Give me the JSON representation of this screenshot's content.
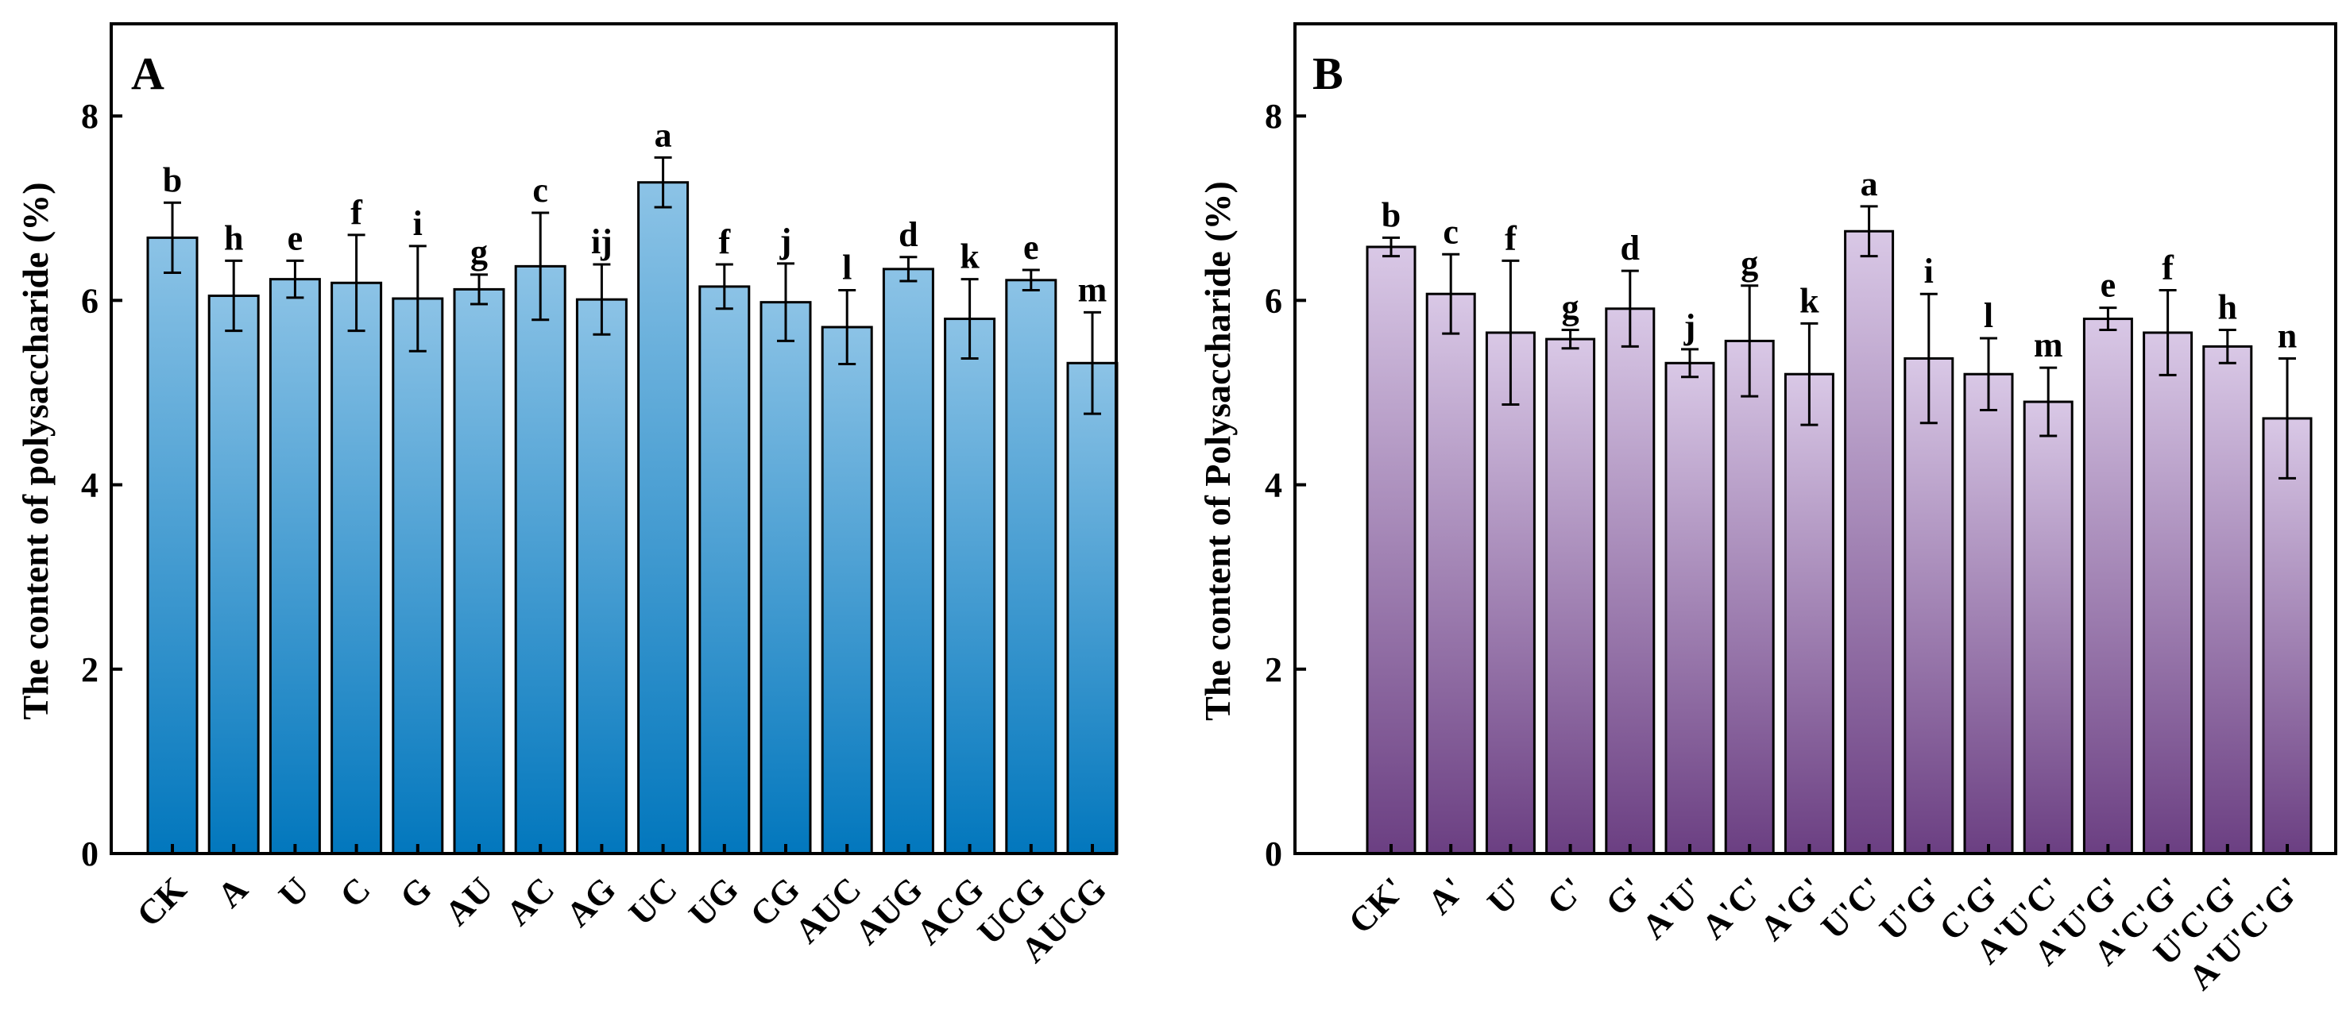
{
  "chart_data": [
    {
      "type": "bar",
      "panel_label": "A",
      "title": "",
      "xlabel": "",
      "ylabel": "The content of polysaccharide (%)",
      "ylim": [
        0,
        9
      ],
      "yticks": [
        0,
        2,
        4,
        6,
        8
      ],
      "categories": [
        "CK",
        "A",
        "U",
        "C",
        "G",
        "AU",
        "AC",
        "AG",
        "UC",
        "UG",
        "CG",
        "AUC",
        "AUG",
        "ACG",
        "UCG",
        "AUCG"
      ],
      "values": [
        6.68,
        6.05,
        6.23,
        6.19,
        6.02,
        6.12,
        6.37,
        6.01,
        7.28,
        6.15,
        5.98,
        5.71,
        6.34,
        5.8,
        6.22,
        5.32
      ],
      "errors": [
        0.38,
        0.38,
        0.2,
        0.52,
        0.57,
        0.16,
        0.58,
        0.38,
        0.27,
        0.24,
        0.42,
        0.4,
        0.13,
        0.43,
        0.11,
        0.55
      ],
      "significance": [
        "b",
        "h",
        "e",
        "f",
        "i",
        "g",
        "c",
        "ij",
        "a",
        "f",
        "j",
        "l",
        "d",
        "k",
        "e",
        "m"
      ],
      "colors": {
        "top": "#8cc3e6",
        "bottom": "#0277bd"
      }
    },
    {
      "type": "bar",
      "panel_label": "B",
      "title": "",
      "xlabel": "",
      "ylabel": "The content of Polysaccharide (%)",
      "ylim": [
        0,
        9
      ],
      "yticks": [
        0,
        2,
        4,
        6,
        8
      ],
      "categories": [
        "CK'",
        "A'",
        "U'",
        "C'",
        "G'",
        "A'U'",
        "A'C'",
        "A'G'",
        "U'C'",
        "U'G'",
        "C'G'",
        "A'U'C'",
        "A'U'G'",
        "A'C'G'",
        "U'C'G'",
        "A'U'C'G'"
      ],
      "values": [
        6.58,
        6.07,
        5.65,
        5.58,
        5.91,
        5.32,
        5.56,
        5.2,
        6.75,
        5.37,
        5.2,
        4.9,
        5.8,
        5.65,
        5.5,
        4.72
      ],
      "errors": [
        0.1,
        0.43,
        0.78,
        0.1,
        0.41,
        0.15,
        0.6,
        0.55,
        0.27,
        0.7,
        0.39,
        0.37,
        0.12,
        0.46,
        0.18,
        0.65
      ],
      "significance": [
        "b",
        "c",
        "f",
        "g",
        "d",
        "j",
        "g",
        "k",
        "a",
        "i",
        "l",
        "m",
        "e",
        "f",
        "h",
        "n"
      ],
      "colors": {
        "top": "#d9c8e6",
        "bottom": "#6b3f82"
      }
    }
  ]
}
